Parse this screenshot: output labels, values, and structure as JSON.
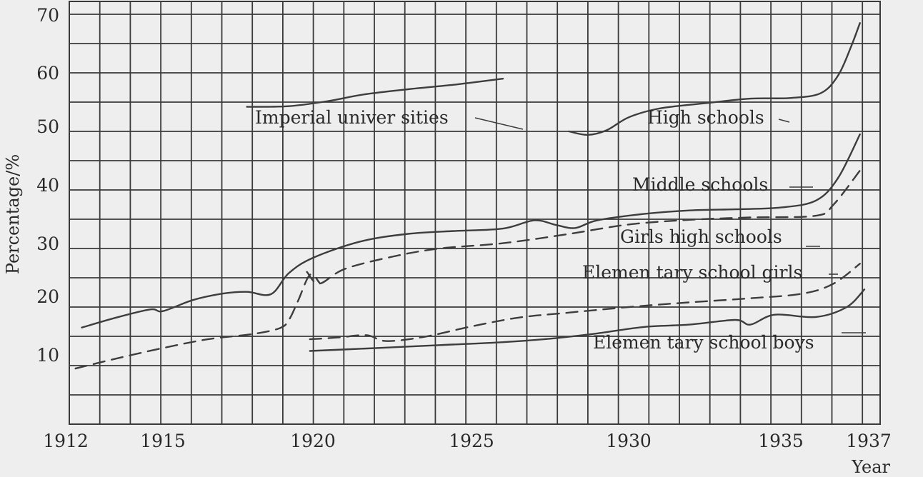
{
  "chart_data": {
    "type": "line",
    "xlabel": "Year",
    "ylabel": "Percentage/%",
    "xlim": [
      1912,
      1937
    ],
    "ylim": [
      0,
      70
    ],
    "x_ticks": [
      "1912",
      "1915",
      "1920",
      "1925",
      "1930",
      "1935",
      "1937"
    ],
    "y_ticks": [
      "10",
      "20",
      "30",
      "40",
      "50",
      "60",
      "70"
    ],
    "grid": true,
    "series": [
      {
        "name": "Imperial univer sities",
        "style": "solid",
        "points": [
          [
            1917.8,
            54.2
          ],
          [
            1919.2,
            54.3
          ],
          [
            1920.5,
            55.2
          ],
          [
            1921.6,
            56.3
          ],
          [
            1923,
            57.2
          ],
          [
            1924.5,
            58
          ],
          [
            1926,
            59
          ]
        ]
      },
      {
        "name": "High schools",
        "style": "solid",
        "points": [
          [
            1928.1,
            50
          ],
          [
            1928.7,
            49.4
          ],
          [
            1929.3,
            50.2
          ],
          [
            1930,
            52.4
          ],
          [
            1931,
            53.9
          ],
          [
            1932.5,
            54.8
          ],
          [
            1934,
            55.6
          ],
          [
            1935.2,
            55.7
          ],
          [
            1935.9,
            56.5
          ],
          [
            1936.3,
            59.5
          ],
          [
            1936.6,
            64.5
          ],
          [
            1936.8,
            68.5
          ]
        ]
      },
      {
        "name": "Middle schools",
        "style": "solid",
        "points": [
          [
            1912.4,
            16.5
          ],
          [
            1913.5,
            18.2
          ],
          [
            1914.6,
            19.6
          ],
          [
            1915,
            19.3
          ],
          [
            1916,
            21.2
          ],
          [
            1917,
            22.3
          ],
          [
            1917.8,
            22.6
          ],
          [
            1918.6,
            22.2
          ],
          [
            1919.2,
            25.8
          ],
          [
            1920,
            28.4
          ],
          [
            1921.5,
            31.2
          ],
          [
            1923,
            32.5
          ],
          [
            1924.5,
            33
          ],
          [
            1926,
            33.4
          ],
          [
            1927,
            34.8
          ],
          [
            1927.7,
            34
          ],
          [
            1928.3,
            33.5
          ],
          [
            1929,
            34.8
          ],
          [
            1930.5,
            35.9
          ],
          [
            1932,
            36.5
          ],
          [
            1933.5,
            36.7
          ],
          [
            1935,
            37
          ],
          [
            1935.8,
            38.2
          ],
          [
            1936.3,
            42
          ],
          [
            1936.8,
            49.5
          ]
        ]
      },
      {
        "name": "Girls high schools",
        "style": "dashed",
        "points": [
          [
            1919.8,
            26
          ],
          [
            1920.2,
            24
          ],
          [
            1921,
            26.5
          ],
          [
            1922.5,
            28.6
          ],
          [
            1924,
            30
          ],
          [
            1926,
            30.9
          ],
          [
            1928,
            32.4
          ],
          [
            1930,
            34.1
          ],
          [
            1932,
            34.9
          ],
          [
            1934,
            35.3
          ],
          [
            1935.8,
            35.6
          ],
          [
            1936.2,
            37.5
          ],
          [
            1936.8,
            43.3
          ]
        ]
      },
      {
        "name": "Elemen tary school girls",
        "style": "dashed",
        "points": [
          [
            1912.2,
            9.5
          ],
          [
            1913.5,
            11.2
          ],
          [
            1915,
            13
          ],
          [
            1916.5,
            14.5
          ],
          [
            1918,
            15.4
          ],
          [
            1918.9,
            16.4
          ],
          [
            1919.2,
            17.8
          ],
          [
            1919.5,
            21
          ],
          [
            1919.9,
            25.5
          ],
          [
            1920.2,
            24.2
          ]
        ]
      },
      {
        "name": "Elemen tary school girls",
        "style": "dashed",
        "points": [
          [
            1919.9,
            14.5
          ],
          [
            1920.8,
            14.8
          ],
          [
            1921.7,
            15.2
          ],
          [
            1922.3,
            14.2
          ],
          [
            1923.5,
            14.9
          ],
          [
            1925,
            16.7
          ],
          [
            1926.5,
            18.2
          ],
          [
            1928,
            19
          ],
          [
            1930,
            20
          ],
          [
            1932,
            20.8
          ],
          [
            1934,
            21.5
          ],
          [
            1935.5,
            22.3
          ],
          [
            1936.2,
            24
          ],
          [
            1936.8,
            27.4
          ]
        ]
      },
      {
        "name": "Elemen tary school boys",
        "style": "solid",
        "points": [
          [
            1919.9,
            12.5
          ],
          [
            1922,
            13
          ],
          [
            1924,
            13.5
          ],
          [
            1926,
            14
          ],
          [
            1927.5,
            14.6
          ],
          [
            1929,
            15.5
          ],
          [
            1930.5,
            16.6
          ],
          [
            1932,
            17
          ],
          [
            1933.5,
            17.8
          ],
          [
            1934,
            17
          ],
          [
            1934.8,
            18.7
          ],
          [
            1935.8,
            18.3
          ],
          [
            1936.5,
            20
          ],
          [
            1936.9,
            23
          ]
        ]
      }
    ],
    "annotations": [
      {
        "text": "Imperial univer sities"
      },
      {
        "text": "High schools"
      },
      {
        "text": "Middle schools"
      },
      {
        "text": "Girls high schools"
      },
      {
        "text": "Elemen tary school girls"
      },
      {
        "text": "Elemen tary school boys"
      }
    ]
  }
}
